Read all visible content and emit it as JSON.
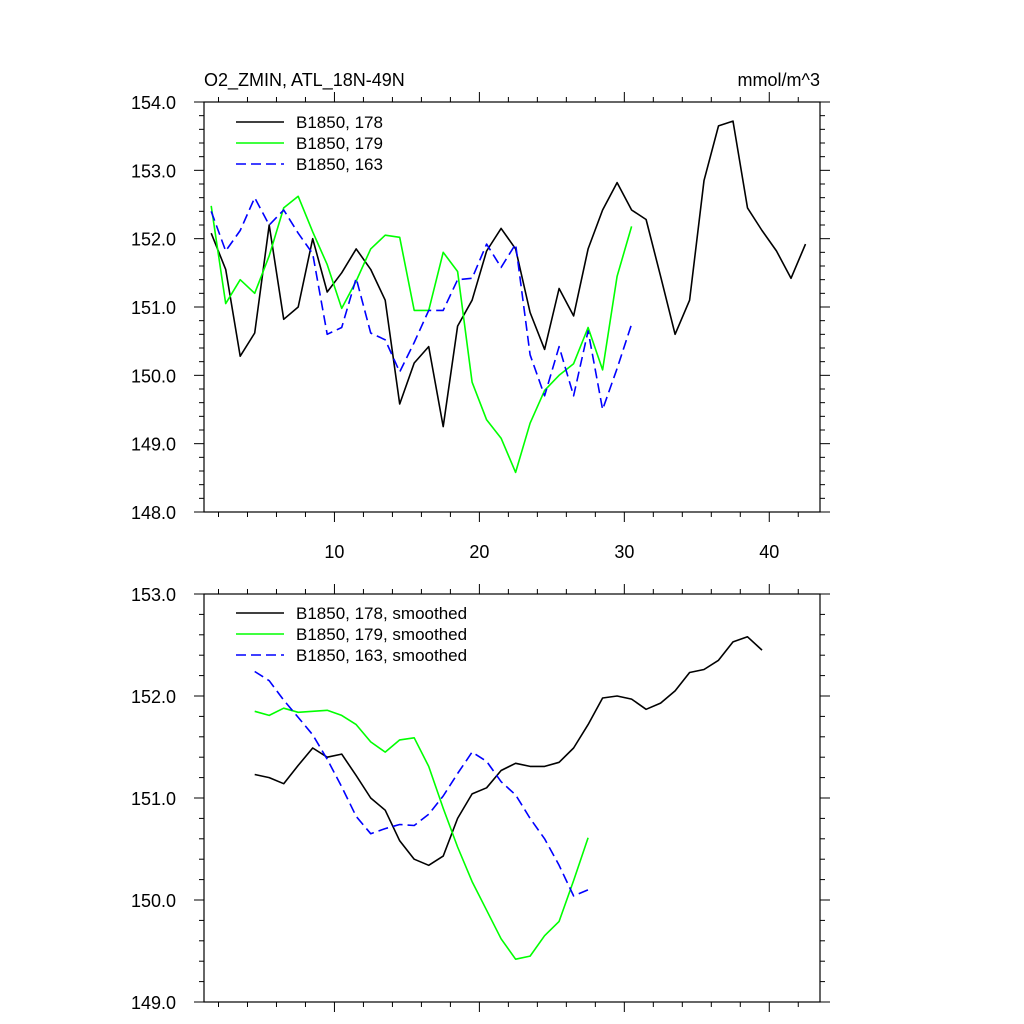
{
  "chart_data": [
    {
      "type": "line",
      "title": "O2_ZMIN, ATL_18N-49N",
      "units": "mmol/m^3",
      "xlim": [
        1,
        43.5
      ],
      "ylim": [
        148,
        154
      ],
      "xticks": [
        10,
        20,
        30,
        40
      ],
      "xtick_labels": [
        "10",
        "20",
        "30",
        "40"
      ],
      "yticks": [
        148,
        149,
        150,
        151,
        152,
        153,
        154
      ],
      "ytick_labels": [
        "148.0",
        "149.0",
        "150.0",
        "151.0",
        "152.0",
        "153.0",
        "154.0"
      ],
      "series": [
        {
          "name": "B1850, 178",
          "color": "#000000",
          "dash": "solid",
          "x": [
            1.5,
            2.5,
            3.5,
            4.5,
            5.5,
            6.5,
            7.5,
            8.5,
            9.5,
            10.5,
            11.5,
            12.5,
            13.5,
            14.5,
            15.5,
            16.5,
            17.5,
            18.5,
            19.5,
            20.5,
            21.5,
            22.5,
            23.5,
            24.5,
            25.5,
            26.5,
            27.5,
            28.5,
            29.5,
            30.5,
            31.5,
            32.5,
            33.5,
            34.5,
            35.5,
            36.5,
            37.5,
            38.5,
            39.5,
            40.5,
            41.5,
            42.5
          ],
          "y": [
            152.08,
            151.55,
            150.28,
            150.62,
            152.2,
            150.82,
            151.0,
            152.0,
            151.22,
            151.5,
            151.85,
            151.55,
            151.1,
            149.58,
            150.18,
            150.42,
            149.25,
            150.72,
            151.1,
            151.82,
            152.15,
            151.85,
            150.92,
            150.38,
            151.27,
            150.87,
            151.85,
            152.42,
            152.82,
            152.42,
            152.28,
            151.45,
            150.6,
            151.1,
            152.85,
            153.65,
            153.72,
            152.45,
            152.12,
            151.82,
            151.42,
            151.92
          ]
        },
        {
          "name": "B1850, 179",
          "color": "#00ff00",
          "dash": "solid",
          "x": [
            1.5,
            2.5,
            3.5,
            4.5,
            5.5,
            6.5,
            7.5,
            8.5,
            9.5,
            10.5,
            11.5,
            12.5,
            13.5,
            14.5,
            15.5,
            16.5,
            17.5,
            18.5,
            19.5,
            20.5,
            21.5,
            22.5,
            23.5,
            24.5,
            25.5,
            26.5,
            27.5,
            28.5,
            29.5,
            30.5
          ],
          "y": [
            152.48,
            151.05,
            151.4,
            151.2,
            151.75,
            152.45,
            152.62,
            152.1,
            151.62,
            150.98,
            151.38,
            151.85,
            152.05,
            152.02,
            150.95,
            150.95,
            151.8,
            151.52,
            149.9,
            149.35,
            149.08,
            148.58,
            149.3,
            149.78,
            150.0,
            150.17,
            150.7,
            150.08,
            151.45,
            152.18
          ]
        },
        {
          "name": "B1850, 163",
          "color": "#0000ff",
          "dash": "dashed",
          "x": [
            1.5,
            2.5,
            3.5,
            4.5,
            5.5,
            6.5,
            7.5,
            8.5,
            9.5,
            10.5,
            11.5,
            12.5,
            13.5,
            14.5,
            15.5,
            16.5,
            17.5,
            18.5,
            19.5,
            20.5,
            21.5,
            22.5,
            23.5,
            24.5,
            25.5,
            26.5,
            27.5,
            28.5,
            29.5,
            30.5
          ],
          "y": [
            152.4,
            151.82,
            152.12,
            152.6,
            152.2,
            152.42,
            152.08,
            151.78,
            150.6,
            150.7,
            151.42,
            150.62,
            150.52,
            150.05,
            150.48,
            150.95,
            150.95,
            151.4,
            151.42,
            151.92,
            151.58,
            151.92,
            150.3,
            149.7,
            150.42,
            149.7,
            150.65,
            149.5,
            150.1,
            150.75
          ]
        }
      ],
      "legend": "top-left"
    },
    {
      "type": "line",
      "title": "",
      "xlim": [
        1,
        43.5
      ],
      "ylim": [
        149,
        153
      ],
      "xticks": [
        10,
        20,
        30,
        40
      ],
      "xtick_labels": [],
      "yticks": [
        149,
        150,
        151,
        152,
        153
      ],
      "ytick_labels": [
        "149.0",
        "150.0",
        "151.0",
        "152.0",
        "153.0"
      ],
      "series": [
        {
          "name": "B1850, 178, smoothed",
          "color": "#000000",
          "dash": "solid",
          "x": [
            4.5,
            5.5,
            6.5,
            7.5,
            8.5,
            9.5,
            10.5,
            11.5,
            12.5,
            13.5,
            14.5,
            15.5,
            16.5,
            17.5,
            18.5,
            19.5,
            20.5,
            21.5,
            22.5,
            23.5,
            24.5,
            25.5,
            26.5,
            27.5,
            28.5,
            29.5,
            30.5,
            31.5,
            32.5,
            33.5,
            34.5,
            35.5,
            36.5,
            37.5,
            38.5,
            39.5
          ],
          "y": [
            151.23,
            151.2,
            151.14,
            151.32,
            151.49,
            151.4,
            151.43,
            151.22,
            151.0,
            150.88,
            150.58,
            150.4,
            150.34,
            150.43,
            150.8,
            151.04,
            151.1,
            151.27,
            151.34,
            151.31,
            151.31,
            151.35,
            151.49,
            151.72,
            151.98,
            152.0,
            151.97,
            151.87,
            151.93,
            152.05,
            152.23,
            152.26,
            152.35,
            152.53,
            152.58,
            152.45
          ]
        },
        {
          "name": "B1850, 179, smoothed",
          "color": "#00ff00",
          "dash": "solid",
          "x": [
            4.5,
            5.5,
            6.5,
            7.5,
            8.5,
            9.5,
            10.5,
            11.5,
            12.5,
            13.5,
            14.5,
            15.5,
            16.5,
            17.5,
            18.5,
            19.5,
            20.5,
            21.5,
            22.5,
            23.5,
            24.5,
            25.5,
            26.5,
            27.5
          ],
          "y": [
            151.85,
            151.81,
            151.88,
            151.84,
            151.85,
            151.86,
            151.81,
            151.72,
            151.55,
            151.45,
            151.57,
            151.59,
            151.31,
            150.9,
            150.52,
            150.18,
            149.9,
            149.62,
            149.42,
            149.45,
            149.65,
            149.79,
            150.19,
            150.61
          ]
        },
        {
          "name": "B1850, 163, smoothed",
          "color": "#0000ff",
          "dash": "dashed",
          "x": [
            4.5,
            5.5,
            6.5,
            7.5,
            8.5,
            9.5,
            10.5,
            11.5,
            12.5,
            13.5,
            14.5,
            15.5,
            16.5,
            17.5,
            18.5,
            19.5,
            20.5,
            21.5,
            22.5,
            23.5,
            24.5,
            25.5,
            26.5,
            27.5
          ],
          "y": [
            152.24,
            152.15,
            151.96,
            151.79,
            151.62,
            151.38,
            151.11,
            150.82,
            150.65,
            150.7,
            150.74,
            150.73,
            150.84,
            151.02,
            151.24,
            151.45,
            151.36,
            151.16,
            151.03,
            150.8,
            150.6,
            150.34,
            150.04,
            150.1
          ]
        }
      ],
      "legend": "top-left"
    }
  ]
}
